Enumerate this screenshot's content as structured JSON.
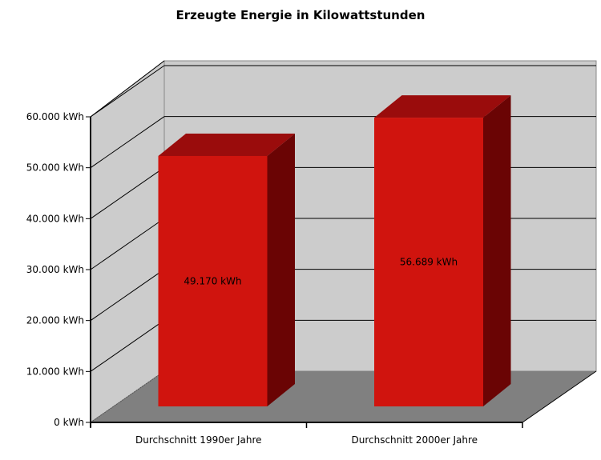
{
  "chart_data": {
    "type": "bar",
    "title": "Erzeugte Energie in Kilowattstunden",
    "xlabel": "",
    "ylabel": "",
    "categories": [
      "Durchschnitt 1990er Jahre",
      "Durchschnitt 2000er Jahre"
    ],
    "values": [
      49170,
      56689
    ],
    "value_labels": [
      "49.170 kWh",
      "56.689 kWh"
    ],
    "ylim": [
      0,
      60000
    ],
    "yticks": [
      0,
      10000,
      20000,
      30000,
      40000,
      50000,
      60000
    ],
    "ytick_labels": [
      "0 kWh",
      "10.000 kWh",
      "20.000 kWh",
      "30.000 kWh",
      "40.000 kWh",
      "50.000 kWh",
      "60.000 kWh"
    ],
    "grid": true,
    "legend": "none",
    "colors": {
      "bar_front": "#d0140e",
      "bar_top": "#9a0c0c",
      "bar_side": "#6a0404",
      "wall": "#cccccc",
      "floor": "#808080"
    }
  }
}
